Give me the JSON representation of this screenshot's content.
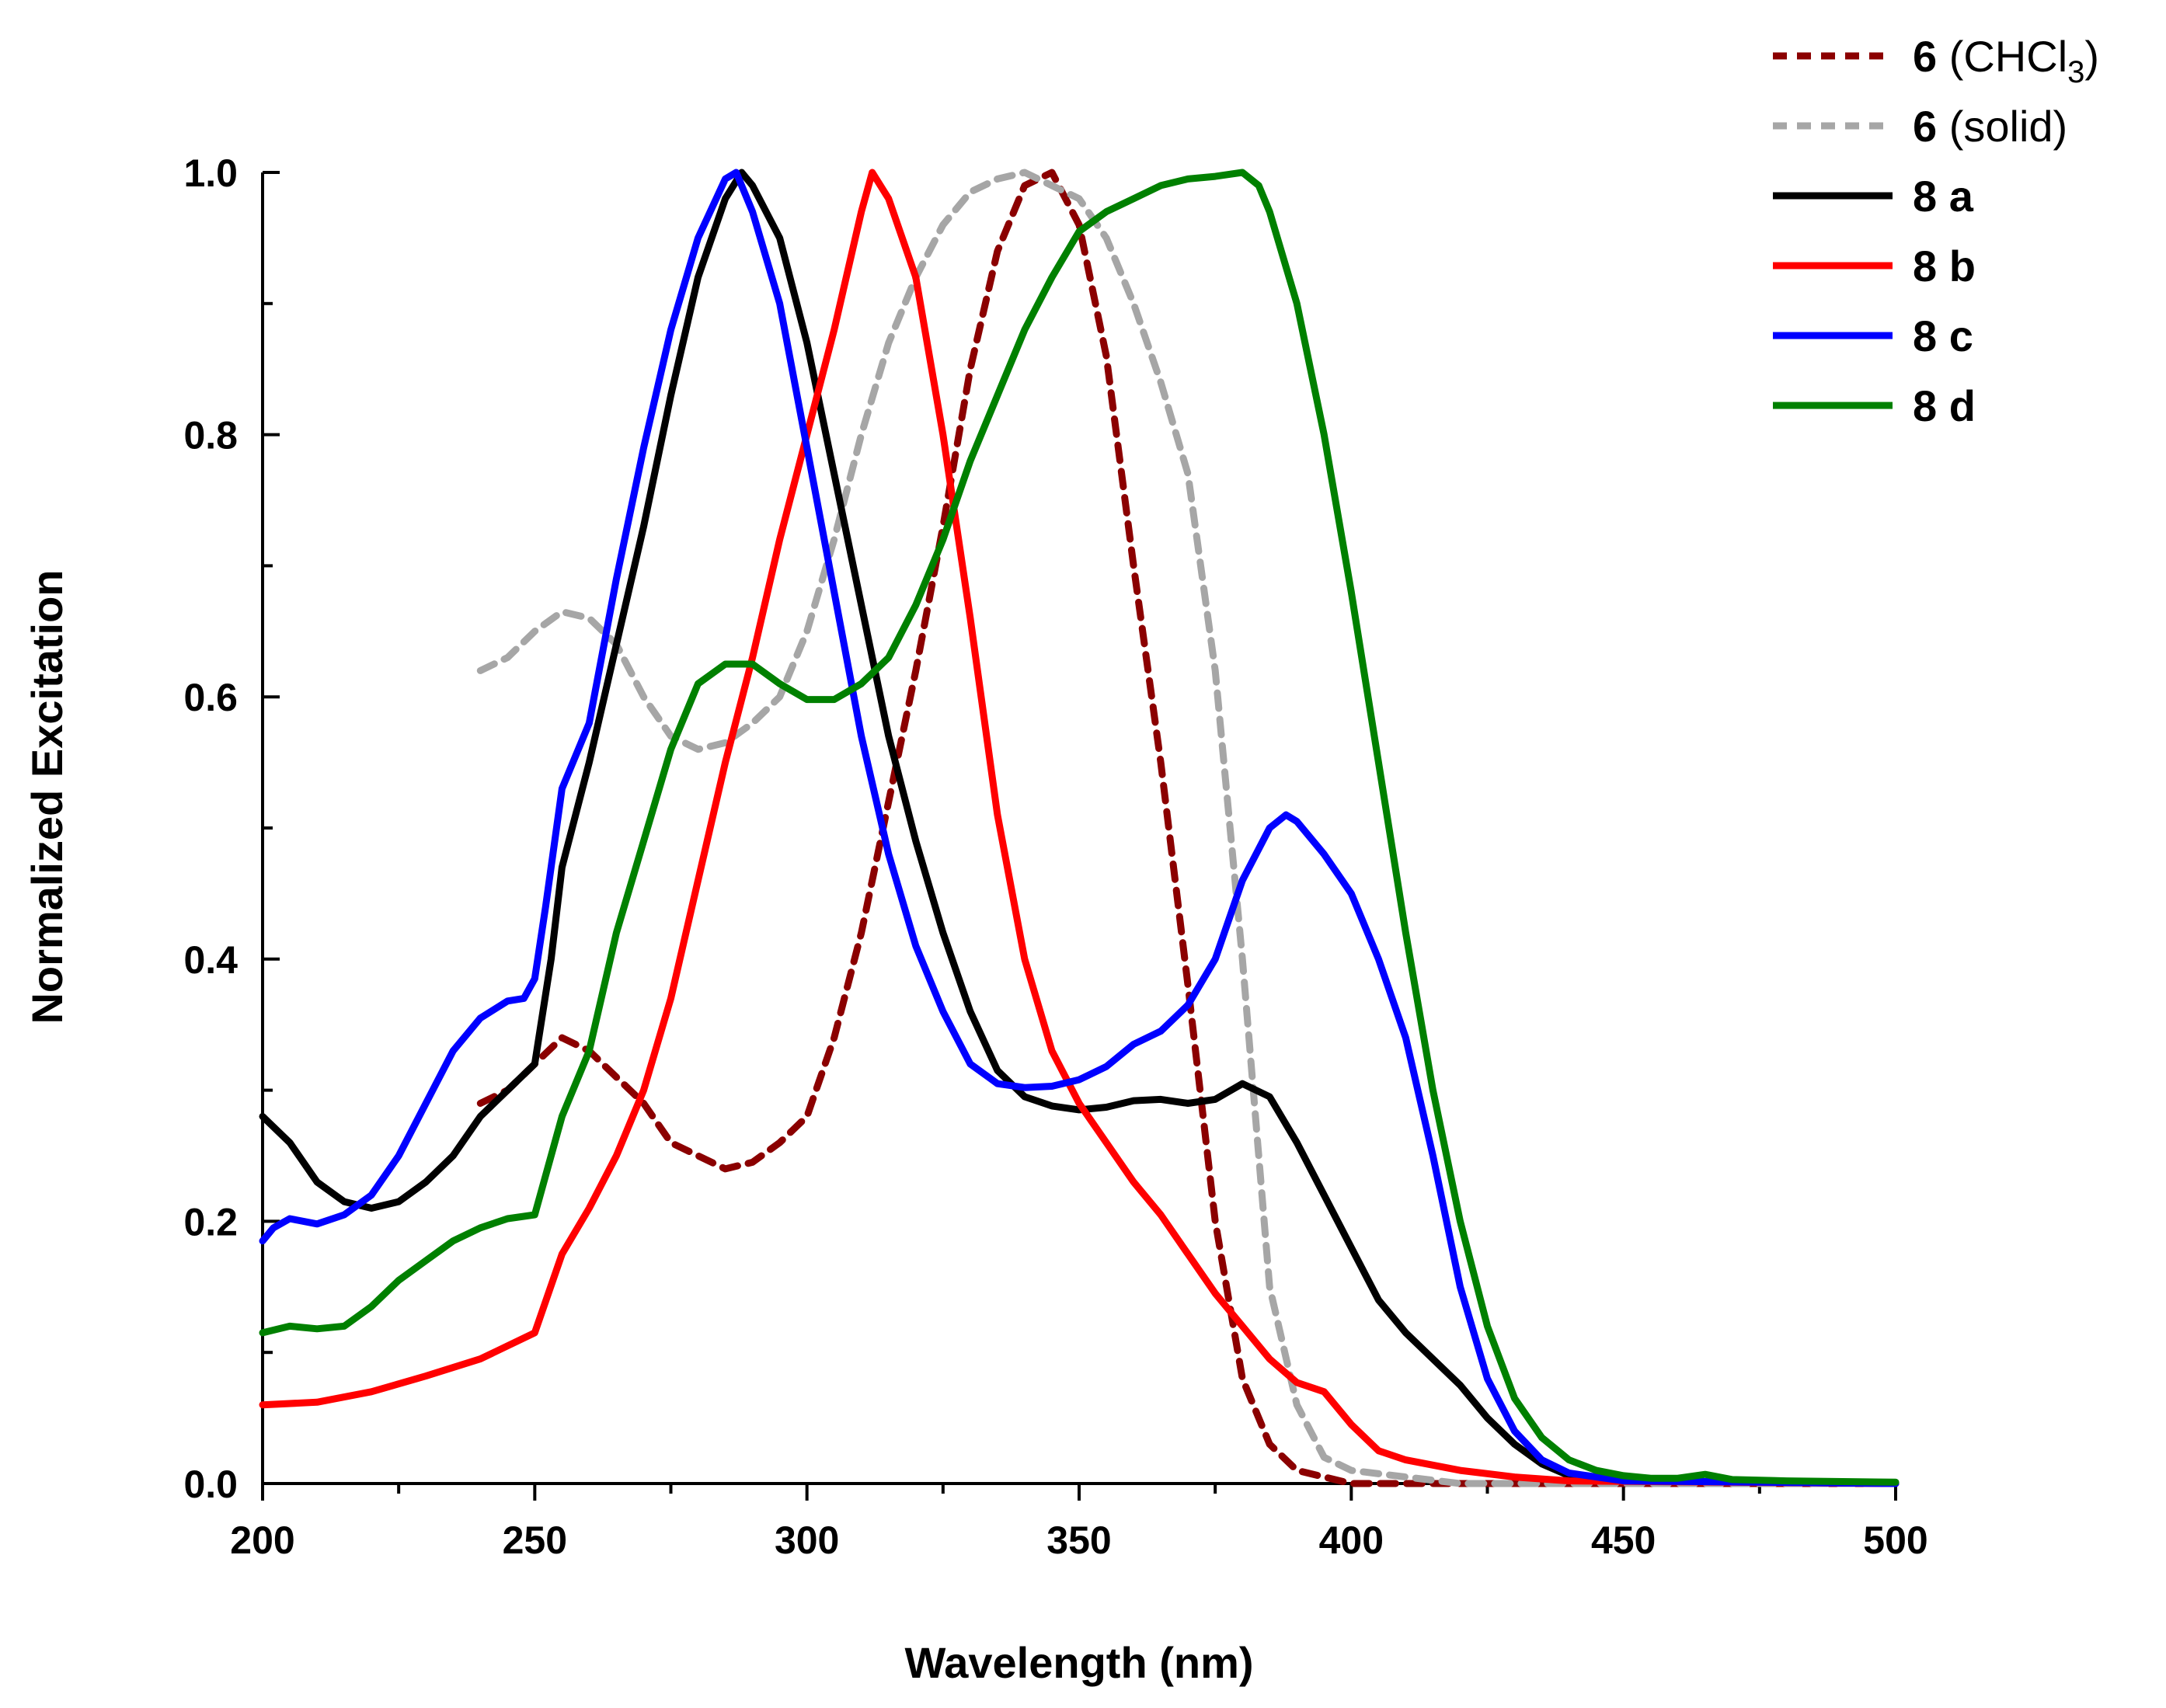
{
  "chart_data": {
    "type": "line",
    "title": "",
    "xlabel": "Wavelength (nm)",
    "ylabel": "Normalized Excitation",
    "xlim": [
      200,
      500
    ],
    "ylim": [
      0,
      1.0
    ],
    "x_ticks": [
      "200",
      "250",
      "300",
      "350",
      "400",
      "450",
      "500"
    ],
    "y_ticks": [
      "0.0",
      "0.2",
      "0.4",
      "0.6",
      "0.8",
      "1.0"
    ],
    "grid": false,
    "legend_position": "top-right",
    "series": [
      {
        "name": "6 (CHCl3)",
        "label_bold": "6",
        "label_rest": " (CHCl",
        "label_sub": "3",
        "label_close": ")",
        "color": "#8b0000",
        "dash": "dashed",
        "points": [
          [
            240,
            0.29
          ],
          [
            245,
            0.3
          ],
          [
            250,
            0.32
          ],
          [
            255,
            0.34
          ],
          [
            260,
            0.33
          ],
          [
            265,
            0.31
          ],
          [
            270,
            0.29
          ],
          [
            275,
            0.26
          ],
          [
            280,
            0.25
          ],
          [
            285,
            0.24
          ],
          [
            290,
            0.245
          ],
          [
            295,
            0.26
          ],
          [
            300,
            0.28
          ],
          [
            305,
            0.34
          ],
          [
            310,
            0.42
          ],
          [
            315,
            0.52
          ],
          [
            320,
            0.62
          ],
          [
            325,
            0.73
          ],
          [
            330,
            0.85
          ],
          [
            335,
            0.94
          ],
          [
            340,
            0.99
          ],
          [
            345,
            1.0
          ],
          [
            350,
            0.96
          ],
          [
            355,
            0.86
          ],
          [
            360,
            0.7
          ],
          [
            365,
            0.55
          ],
          [
            370,
            0.38
          ],
          [
            375,
            0.2
          ],
          [
            380,
            0.08
          ],
          [
            385,
            0.03
          ],
          [
            390,
            0.01
          ],
          [
            400,
            0.0
          ],
          [
            450,
            0.0
          ],
          [
            500,
            0.0
          ]
        ]
      },
      {
        "name": "6 (solid)",
        "label_bold": "6",
        "label_rest": " (solid)",
        "color": "#a6a6a6",
        "dash": "dashed",
        "points": [
          [
            240,
            0.62
          ],
          [
            245,
            0.63
          ],
          [
            250,
            0.65
          ],
          [
            255,
            0.665
          ],
          [
            260,
            0.66
          ],
          [
            265,
            0.64
          ],
          [
            270,
            0.6
          ],
          [
            275,
            0.57
          ],
          [
            280,
            0.56
          ],
          [
            285,
            0.565
          ],
          [
            290,
            0.58
          ],
          [
            295,
            0.6
          ],
          [
            300,
            0.65
          ],
          [
            305,
            0.72
          ],
          [
            310,
            0.8
          ],
          [
            315,
            0.87
          ],
          [
            320,
            0.92
          ],
          [
            325,
            0.96
          ],
          [
            330,
            0.985
          ],
          [
            335,
            0.995
          ],
          [
            340,
            1.0
          ],
          [
            345,
            0.99
          ],
          [
            350,
            0.98
          ],
          [
            355,
            0.95
          ],
          [
            360,
            0.9
          ],
          [
            365,
            0.84
          ],
          [
            370,
            0.77
          ],
          [
            375,
            0.62
          ],
          [
            380,
            0.4
          ],
          [
            385,
            0.15
          ],
          [
            390,
            0.06
          ],
          [
            395,
            0.02
          ],
          [
            400,
            0.01
          ],
          [
            420,
            0.0
          ],
          [
            500,
            0.0
          ]
        ]
      },
      {
        "name": "8 a",
        "label_bold": "8 a",
        "color": "#000000",
        "dash": "solid",
        "points": [
          [
            200,
            0.28
          ],
          [
            205,
            0.26
          ],
          [
            210,
            0.23
          ],
          [
            215,
            0.215
          ],
          [
            220,
            0.21
          ],
          [
            225,
            0.215
          ],
          [
            230,
            0.23
          ],
          [
            235,
            0.25
          ],
          [
            240,
            0.28
          ],
          [
            245,
            0.3
          ],
          [
            250,
            0.32
          ],
          [
            253,
            0.4
          ],
          [
            255,
            0.47
          ],
          [
            260,
            0.55
          ],
          [
            265,
            0.64
          ],
          [
            270,
            0.73
          ],
          [
            275,
            0.83
          ],
          [
            280,
            0.92
          ],
          [
            285,
            0.98
          ],
          [
            288,
            1.0
          ],
          [
            290,
            0.99
          ],
          [
            295,
            0.95
          ],
          [
            300,
            0.87
          ],
          [
            305,
            0.77
          ],
          [
            310,
            0.67
          ],
          [
            315,
            0.57
          ],
          [
            320,
            0.49
          ],
          [
            325,
            0.42
          ],
          [
            330,
            0.36
          ],
          [
            335,
            0.315
          ],
          [
            340,
            0.295
          ],
          [
            345,
            0.288
          ],
          [
            350,
            0.285
          ],
          [
            355,
            0.287
          ],
          [
            360,
            0.292
          ],
          [
            365,
            0.293
          ],
          [
            370,
            0.29
          ],
          [
            375,
            0.293
          ],
          [
            380,
            0.305
          ],
          [
            385,
            0.295
          ],
          [
            390,
            0.26
          ],
          [
            395,
            0.22
          ],
          [
            400,
            0.18
          ],
          [
            405,
            0.14
          ],
          [
            410,
            0.115
          ],
          [
            415,
            0.095
          ],
          [
            420,
            0.075
          ],
          [
            425,
            0.05
          ],
          [
            430,
            0.03
          ],
          [
            435,
            0.015
          ],
          [
            440,
            0.006
          ],
          [
            450,
            0.002
          ],
          [
            500,
            0.0
          ]
        ]
      },
      {
        "name": "8 b",
        "label_bold": "8 b",
        "color": "#ff0000",
        "dash": "solid",
        "points": [
          [
            200,
            0.06
          ],
          [
            210,
            0.062
          ],
          [
            220,
            0.07
          ],
          [
            230,
            0.082
          ],
          [
            240,
            0.095
          ],
          [
            250,
            0.115
          ],
          [
            255,
            0.175
          ],
          [
            260,
            0.21
          ],
          [
            265,
            0.25
          ],
          [
            270,
            0.3
          ],
          [
            275,
            0.37
          ],
          [
            280,
            0.46
          ],
          [
            285,
            0.55
          ],
          [
            290,
            0.63
          ],
          [
            295,
            0.72
          ],
          [
            300,
            0.8
          ],
          [
            305,
            0.88
          ],
          [
            310,
            0.97
          ],
          [
            312,
            1.0
          ],
          [
            315,
            0.98
          ],
          [
            320,
            0.92
          ],
          [
            325,
            0.8
          ],
          [
            330,
            0.66
          ],
          [
            335,
            0.51
          ],
          [
            340,
            0.4
          ],
          [
            345,
            0.33
          ],
          [
            350,
            0.29
          ],
          [
            355,
            0.26
          ],
          [
            360,
            0.23
          ],
          [
            365,
            0.205
          ],
          [
            370,
            0.175
          ],
          [
            375,
            0.145
          ],
          [
            380,
            0.12
          ],
          [
            385,
            0.095
          ],
          [
            390,
            0.077
          ],
          [
            395,
            0.07
          ],
          [
            400,
            0.045
          ],
          [
            405,
            0.025
          ],
          [
            410,
            0.018
          ],
          [
            420,
            0.01
          ],
          [
            430,
            0.005
          ],
          [
            440,
            0.002
          ],
          [
            500,
            0.0
          ]
        ]
      },
      {
        "name": "8 c",
        "label_bold": "8 c",
        "color": "#0000ff",
        "dash": "solid",
        "points": [
          [
            200,
            0.185
          ],
          [
            202,
            0.195
          ],
          [
            205,
            0.202
          ],
          [
            210,
            0.198
          ],
          [
            215,
            0.205
          ],
          [
            220,
            0.22
          ],
          [
            225,
            0.25
          ],
          [
            230,
            0.29
          ],
          [
            235,
            0.33
          ],
          [
            240,
            0.355
          ],
          [
            245,
            0.368
          ],
          [
            248,
            0.37
          ],
          [
            250,
            0.385
          ],
          [
            252,
            0.44
          ],
          [
            255,
            0.53
          ],
          [
            260,
            0.58
          ],
          [
            265,
            0.69
          ],
          [
            270,
            0.79
          ],
          [
            275,
            0.88
          ],
          [
            280,
            0.95
          ],
          [
            285,
            0.995
          ],
          [
            287,
            1.0
          ],
          [
            290,
            0.97
          ],
          [
            295,
            0.9
          ],
          [
            300,
            0.79
          ],
          [
            305,
            0.68
          ],
          [
            310,
            0.57
          ],
          [
            315,
            0.48
          ],
          [
            320,
            0.41
          ],
          [
            325,
            0.36
          ],
          [
            330,
            0.32
          ],
          [
            335,
            0.305
          ],
          [
            340,
            0.302
          ],
          [
            345,
            0.303
          ],
          [
            350,
            0.308
          ],
          [
            355,
            0.318
          ],
          [
            360,
            0.335
          ],
          [
            365,
            0.345
          ],
          [
            370,
            0.365
          ],
          [
            375,
            0.4
          ],
          [
            380,
            0.46
          ],
          [
            385,
            0.5
          ],
          [
            388,
            0.51
          ],
          [
            390,
            0.505
          ],
          [
            395,
            0.48
          ],
          [
            400,
            0.45
          ],
          [
            405,
            0.4
          ],
          [
            410,
            0.34
          ],
          [
            415,
            0.25
          ],
          [
            420,
            0.15
          ],
          [
            425,
            0.08
          ],
          [
            430,
            0.04
          ],
          [
            435,
            0.018
          ],
          [
            440,
            0.008
          ],
          [
            450,
            0.002
          ],
          [
            500,
            0.0
          ]
        ]
      },
      {
        "name": "8 d",
        "label_bold": "8 d",
        "color": "#008000",
        "dash": "solid",
        "points": [
          [
            200,
            0.115
          ],
          [
            205,
            0.12
          ],
          [
            210,
            0.118
          ],
          [
            215,
            0.12
          ],
          [
            220,
            0.135
          ],
          [
            225,
            0.155
          ],
          [
            230,
            0.17
          ],
          [
            235,
            0.185
          ],
          [
            240,
            0.195
          ],
          [
            245,
            0.202
          ],
          [
            250,
            0.205
          ],
          [
            255,
            0.28
          ],
          [
            260,
            0.33
          ],
          [
            265,
            0.42
          ],
          [
            270,
            0.49
          ],
          [
            275,
            0.56
          ],
          [
            280,
            0.61
          ],
          [
            285,
            0.625
          ],
          [
            290,
            0.625
          ],
          [
            295,
            0.61
          ],
          [
            300,
            0.598
          ],
          [
            305,
            0.598
          ],
          [
            310,
            0.61
          ],
          [
            315,
            0.63
          ],
          [
            320,
            0.67
          ],
          [
            325,
            0.72
          ],
          [
            330,
            0.78
          ],
          [
            335,
            0.83
          ],
          [
            340,
            0.88
          ],
          [
            345,
            0.92
          ],
          [
            350,
            0.955
          ],
          [
            355,
            0.97
          ],
          [
            360,
            0.98
          ],
          [
            365,
            0.99
          ],
          [
            370,
            0.995
          ],
          [
            375,
            0.997
          ],
          [
            380,
            1.0
          ],
          [
            383,
            0.99
          ],
          [
            385,
            0.97
          ],
          [
            390,
            0.9
          ],
          [
            395,
            0.8
          ],
          [
            400,
            0.68
          ],
          [
            405,
            0.55
          ],
          [
            410,
            0.42
          ],
          [
            415,
            0.3
          ],
          [
            420,
            0.2
          ],
          [
            425,
            0.12
          ],
          [
            430,
            0.065
          ],
          [
            435,
            0.035
          ],
          [
            440,
            0.018
          ],
          [
            445,
            0.01
          ],
          [
            450,
            0.006
          ],
          [
            455,
            0.004
          ],
          [
            460,
            0.004
          ],
          [
            465,
            0.007
          ],
          [
            470,
            0.003
          ],
          [
            480,
            0.002
          ],
          [
            500,
            0.001
          ]
        ]
      }
    ]
  }
}
